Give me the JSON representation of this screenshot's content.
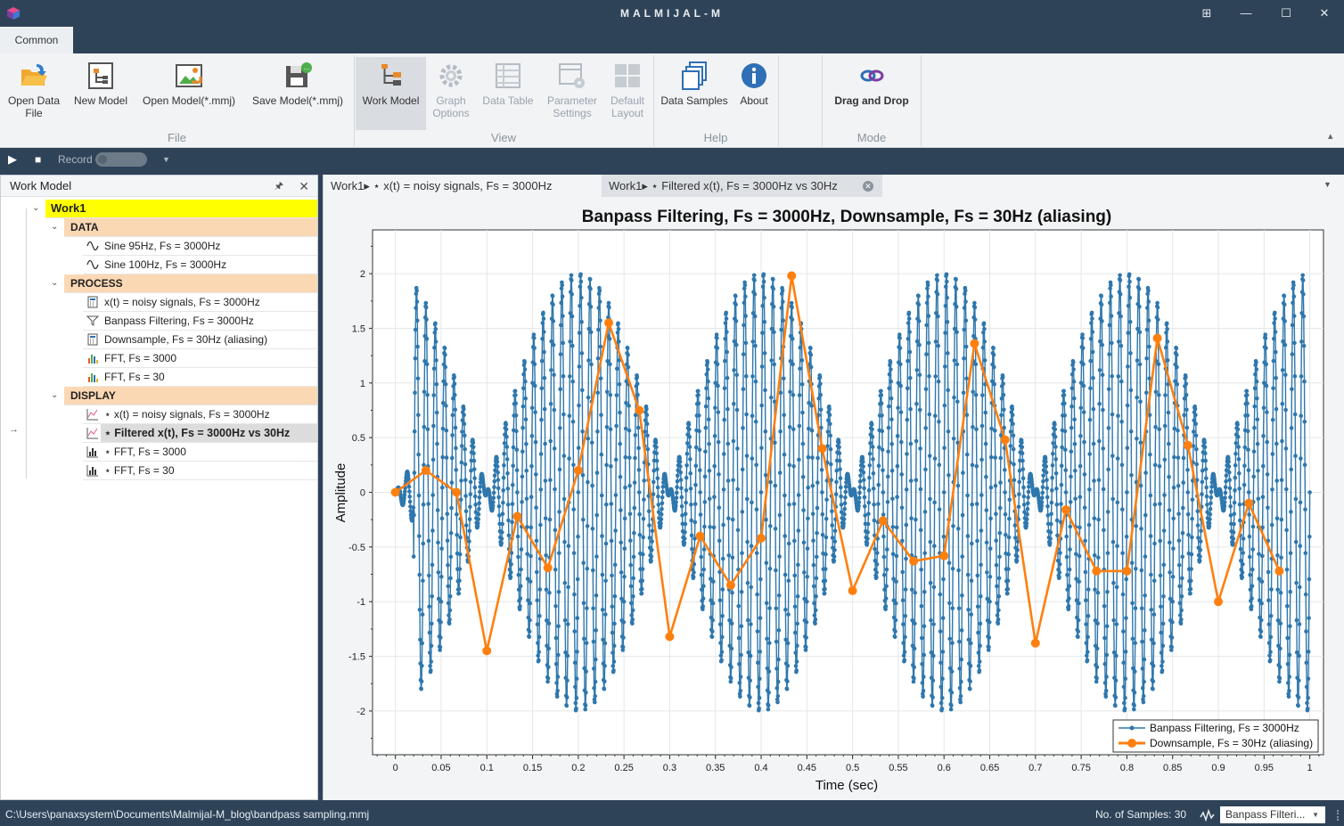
{
  "app": {
    "title": "MALMIJAL-M",
    "icon": "app-cube-icon",
    "window_buttons": [
      "restore-grid-icon",
      "minimize-icon",
      "maximize-icon",
      "close-icon"
    ]
  },
  "ribbon": {
    "tab": "Common",
    "groups": [
      {
        "label": "File",
        "buttons": [
          {
            "line1": "Open Data",
            "line2": "File",
            "icon": "open-folder-icon",
            "state": "normal"
          },
          {
            "line1": "New Model",
            "line2": "",
            "icon": "new-model-icon",
            "state": "normal"
          },
          {
            "line1": "Open Model(*.mmj)",
            "line2": "",
            "icon": "open-model-icon",
            "state": "normal"
          },
          {
            "line1": "Save Model(*.mmj)",
            "line2": "",
            "icon": "save-model-icon",
            "state": "normal"
          }
        ]
      },
      {
        "label": "View",
        "buttons": [
          {
            "line1": "Work Model",
            "line2": "",
            "icon": "work-model-icon",
            "state": "active"
          },
          {
            "line1": "Graph",
            "line2": "Options",
            "icon": "gear-icon",
            "state": "disabled"
          },
          {
            "line1": "Data Table",
            "line2": "",
            "icon": "table-icon",
            "state": "disabled"
          },
          {
            "line1": "Parameter",
            "line2": "Settings",
            "icon": "parameter-icon",
            "state": "disabled"
          },
          {
            "line1": "Default",
            "line2": "Layout",
            "icon": "layout-icon",
            "state": "disabled"
          }
        ]
      },
      {
        "label": "Help",
        "buttons": [
          {
            "line1": "Data Samples",
            "line2": "",
            "icon": "data-samples-icon",
            "state": "normal"
          },
          {
            "line1": "About",
            "line2": "",
            "icon": "info-icon",
            "state": "normal"
          }
        ]
      },
      {
        "label": "Mode",
        "buttons": [
          {
            "line1": "Drag and Drop",
            "line2": "",
            "icon": "drag-drop-icon",
            "state": "normal"
          }
        ]
      }
    ]
  },
  "recordbar": {
    "record_label": "Record",
    "icons": [
      "play-icon",
      "stop-icon",
      "dropdown-icon"
    ]
  },
  "workmodel": {
    "title": "Work Model",
    "root": "Work1",
    "sections": [
      {
        "label": "DATA",
        "items": [
          {
            "label": "Sine 95Hz, Fs = 3000Hz",
            "icon": "sine-icon"
          },
          {
            "label": "Sine 100Hz, Fs = 3000Hz",
            "icon": "sine-icon"
          }
        ]
      },
      {
        "label": "PROCESS",
        "items": [
          {
            "label": "x(t) = noisy signals, Fs = 3000Hz",
            "icon": "calc-icon"
          },
          {
            "label": "Banpass Filtering, Fs = 3000Hz",
            "icon": "filter-icon"
          },
          {
            "label": "Downsample, Fs = 30Hz (aliasing)",
            "icon": "calc-icon"
          },
          {
            "label": "FFT, Fs = 3000",
            "icon": "fft-icon"
          },
          {
            "label": "FFT, Fs = 30",
            "icon": "fft-icon"
          }
        ]
      },
      {
        "label": "DISPLAY",
        "items": [
          {
            "label": "⋆ x(t) = noisy signals, Fs = 3000Hz",
            "icon": "line-chart-icon"
          },
          {
            "label": "⋆ Filtered x(t), Fs = 3000Hz vs 30Hz",
            "icon": "line-chart-icon",
            "selected": true
          },
          {
            "label": "⋆ FFT, Fs = 3000",
            "icon": "bar-chart-icon"
          },
          {
            "label": "⋆ FFT, Fs = 30",
            "icon": "bar-chart-icon"
          }
        ]
      }
    ]
  },
  "doc_tabs": [
    {
      "label": "Work1▸ ⋆ x(t) = noisy signals, Fs = 3000Hz",
      "active": false
    },
    {
      "label": "Work1▸ ⋆ Filtered x(t), Fs = 3000Hz vs 30Hz",
      "active": true
    }
  ],
  "chart_data": {
    "type": "line",
    "title": "Banpass Filtering, Fs = 3000Hz, Downsample, Fs = 30Hz (aliasing)",
    "xlabel": "Time (sec)",
    "ylabel": "Amplitude",
    "xlim": [
      -0.025,
      1.015
    ],
    "ylim": [
      -2.4,
      2.4
    ],
    "xticks": [
      0,
      0.05,
      0.1,
      0.15,
      0.2,
      0.25,
      0.3,
      0.35,
      0.4,
      0.45,
      0.5,
      0.55,
      0.6,
      0.65,
      0.7,
      0.75,
      0.8,
      0.85,
      0.9,
      0.95,
      1
    ],
    "xtick_labels": [
      "0",
      "0.05",
      "0.1",
      "0.15",
      "0.2",
      "0.25",
      "0.3",
      "0.35",
      "0.4",
      "0.45",
      "0.5",
      "0.55",
      "0.6",
      "0.65",
      "0.7",
      "0.75",
      "0.8",
      "0.85",
      "0.9",
      "0.95",
      "1"
    ],
    "yticks": [
      -2,
      -1.5,
      -1,
      -0.5,
      0,
      0.5,
      1,
      1.5,
      2
    ],
    "ytick_labels": [
      "-2",
      "-1.5",
      "-1",
      "-0.5",
      "0",
      "0.5",
      "1",
      "1.5",
      "2"
    ],
    "grid": true,
    "legend_position": "bottom-right",
    "series": [
      {
        "name": "Banpass Filtering, Fs = 3000Hz",
        "color": "#2e77ad",
        "sample_rate_hz": 3000,
        "components": [
          {
            "freq_hz": 95,
            "amp": 1.0
          },
          {
            "freq_hz": 100,
            "amp": 1.0
          }
        ],
        "onset_sec": 0.02
      },
      {
        "name": "Downsample, Fs = 30Hz (aliasing)",
        "color": "#ff7f0e",
        "x": [
          0,
          0.0333,
          0.0667,
          0.1,
          0.1333,
          0.1667,
          0.2,
          0.2333,
          0.2667,
          0.3,
          0.3333,
          0.3667,
          0.4,
          0.4333,
          0.4667,
          0.5,
          0.5333,
          0.5667,
          0.6,
          0.6333,
          0.6667,
          0.7,
          0.7333,
          0.7667,
          0.8,
          0.8333,
          0.8667,
          0.9,
          0.9333,
          0.9667
        ],
        "y": [
          0,
          0.2,
          0,
          -1.45,
          -0.22,
          -0.69,
          0.2,
          1.55,
          0.75,
          -1.32,
          -0.4,
          -0.85,
          -0.42,
          1.98,
          0.4,
          -0.9,
          -0.26,
          -0.63,
          -0.58,
          1.36,
          0.48,
          -1.38,
          -0.16,
          -0.72,
          -0.72,
          1.41,
          0.43,
          -1.0,
          -0.1,
          -0.72
        ]
      }
    ]
  },
  "status": {
    "path": "C:\\Users\\panaxsystem\\Documents\\Malmijal-M_blog\\bandpass sampling.mmj",
    "samples": "No. of Samples: 30",
    "combo_value": "Banpass Filteri...",
    "combo_icon": "waveform-icon"
  }
}
